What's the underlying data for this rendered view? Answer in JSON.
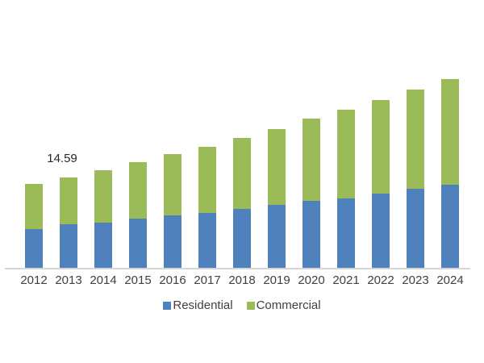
{
  "chart_data": {
    "type": "bar",
    "stacked": true,
    "title": "",
    "xlabel": "",
    "ylabel": "",
    "categories": [
      "2012",
      "2013",
      "2014",
      "2015",
      "2016",
      "2017",
      "2018",
      "2019",
      "2020",
      "2021",
      "2022",
      "2023",
      "2024"
    ],
    "series": [
      {
        "name": "Residential",
        "color": "#4F81BD",
        "values": [
          6.29,
          7.05,
          7.24,
          7.89,
          8.45,
          8.89,
          9.54,
          10.1,
          10.75,
          11.21,
          11.92,
          12.8,
          13.44
        ]
      },
      {
        "name": "Commercial",
        "color": "#9BBB59",
        "values": [
          7.28,
          7.54,
          8.45,
          9.1,
          9.84,
          10.61,
          11.39,
          12.31,
          13.3,
          14.24,
          15.17,
          15.94,
          16.98
        ]
      }
    ],
    "annotations": [
      {
        "category": "2013",
        "text": "14.59",
        "value": 14.59
      }
    ],
    "y_axis_visible": false,
    "gridlines": false,
    "legend_position": "bottom",
    "style": {
      "background_color": "#FFFFFF",
      "axis_line_color": "#D6D6D6",
      "tick_label_color": "#404040",
      "legend_label_color": "#404040",
      "data_label_color": "#262626"
    }
  }
}
